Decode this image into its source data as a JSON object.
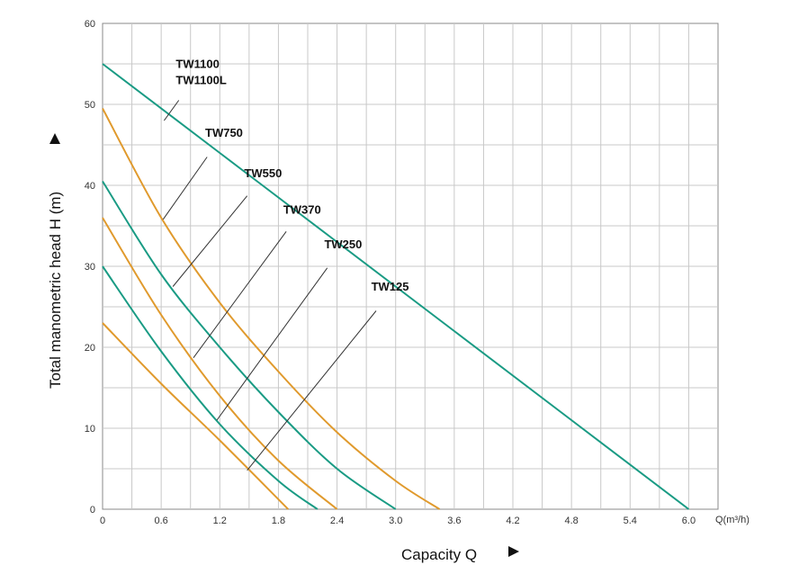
{
  "chart_data": {
    "type": "line",
    "xlabel": "Capacity Q",
    "ylabel": "Total manometric head H (m)",
    "x_unit": "Q(m³/h)",
    "xlim": [
      0,
      6.3
    ],
    "ylim": [
      0,
      60
    ],
    "x_ticks": [
      "0",
      "0.6",
      "1.2",
      "1.8",
      "2.4",
      "3.0",
      "3.6",
      "4.2",
      "4.8",
      "5.4",
      "6.0"
    ],
    "y_ticks": [
      "0",
      "10",
      "20",
      "30",
      "40",
      "50",
      "60"
    ],
    "grid": true,
    "series": [
      {
        "color": "#1a9b84",
        "x": [
          0,
          1.2,
          2.4,
          3.6,
          4.8,
          6.0
        ],
        "y": [
          55,
          44,
          33,
          22,
          11,
          0
        ]
      },
      {
        "color": "#e09a2d",
        "x": [
          0,
          0.6,
          1.2,
          1.8,
          2.4,
          3.0,
          3.45
        ],
        "y": [
          49.5,
          36,
          25.5,
          17,
          9.5,
          3.5,
          0
        ]
      },
      {
        "color": "#1a9b84",
        "x": [
          0,
          0.6,
          1.2,
          1.8,
          2.4,
          3.0
        ],
        "y": [
          40.5,
          29,
          20,
          12,
          5,
          0
        ]
      },
      {
        "color": "#e09a2d",
        "x": [
          0,
          0.6,
          1.2,
          1.8,
          2.4
        ],
        "y": [
          36,
          24,
          14,
          6,
          0
        ]
      },
      {
        "color": "#1a9b84",
        "x": [
          0,
          0.6,
          1.2,
          1.8,
          2.2
        ],
        "y": [
          30,
          19.5,
          10.5,
          3.5,
          0
        ]
      },
      {
        "color": "#e09a2d",
        "x": [
          0,
          0.6,
          1.2,
          1.9
        ],
        "y": [
          23,
          15.5,
          8.5,
          0
        ]
      }
    ],
    "annotations": [
      {
        "lines": [
          "TW1100",
          "TW1100L"
        ],
        "text_at": [
          0.75,
          54.5
        ],
        "leader_from": [
          0.78,
          50.5
        ],
        "leader_to": [
          0.63,
          48.0
        ]
      },
      {
        "lines": [
          "TW750"
        ],
        "text_at": [
          1.05,
          46.0
        ],
        "leader_from": [
          1.07,
          43.5
        ],
        "leader_to": [
          0.62,
          35.8
        ]
      },
      {
        "lines": [
          "TW550"
        ],
        "text_at": [
          1.45,
          41.0
        ],
        "leader_from": [
          1.48,
          38.7
        ],
        "leader_to": [
          0.72,
          27.5
        ]
      },
      {
        "lines": [
          "TW370"
        ],
        "text_at": [
          1.85,
          36.5
        ],
        "leader_from": [
          1.88,
          34.3
        ],
        "leader_to": [
          0.93,
          18.7
        ]
      },
      {
        "lines": [
          "TW250"
        ],
        "text_at": [
          2.27,
          32.2
        ],
        "leader_from": [
          2.3,
          29.8
        ],
        "leader_to": [
          1.17,
          11.0
        ]
      },
      {
        "lines": [
          "TW125"
        ],
        "text_at": [
          2.75,
          27.0
        ],
        "leader_from": [
          2.8,
          24.5
        ],
        "leader_to": [
          1.48,
          4.8
        ]
      }
    ]
  }
}
